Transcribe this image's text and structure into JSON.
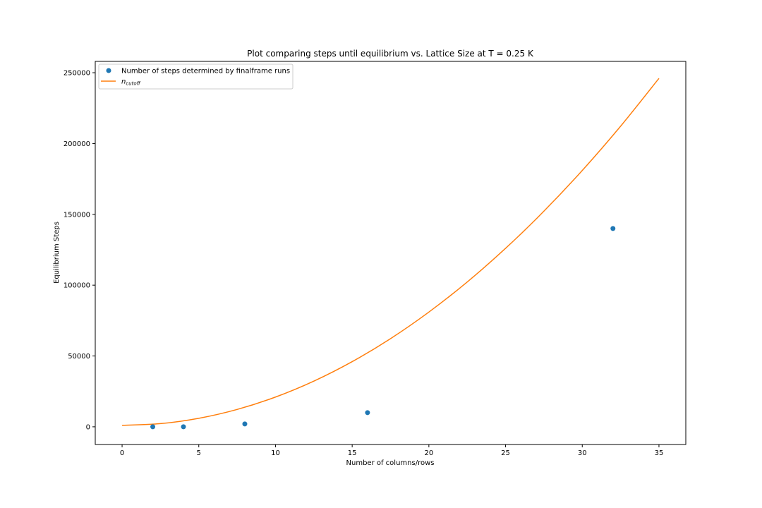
{
  "chart_data": {
    "type": "scatter",
    "title": "Plot comparing steps until equilibrium vs. Lattice Size at T = 0.25 K",
    "xlabel": "Number of columns/rows",
    "ylabel": "Equilibrium Steps",
    "xlim": [
      -1.75,
      36.75
    ],
    "ylim": [
      -12500,
      258000
    ],
    "xticks": [
      0,
      5,
      10,
      15,
      20,
      25,
      30,
      35
    ],
    "yticks": [
      0,
      50000,
      100000,
      150000,
      200000,
      250000
    ],
    "xtick_labels": [
      "0",
      "5",
      "10",
      "15",
      "20",
      "25",
      "30",
      "35"
    ],
    "ytick_labels": [
      "0",
      "50000",
      "100000",
      "150000",
      "200000",
      "250000"
    ],
    "grid": false,
    "legend": {
      "position": "top-left",
      "entries": [
        {
          "label": "Number of steps determined by finalframe runs",
          "color": "#1f77b4",
          "marker": "circle"
        },
        {
          "label_main": "n",
          "label_sub": "cutoff",
          "color": "#ff7f0e",
          "marker": "line"
        }
      ]
    },
    "series": [
      {
        "kind": "scatter",
        "color": "#1f77b4",
        "x": [
          2,
          4,
          8,
          16,
          32
        ],
        "y": [
          0,
          0,
          2000,
          10000,
          140000
        ]
      },
      {
        "kind": "line",
        "color": "#ff7f0e",
        "x": [
          0,
          2.5,
          5,
          7.5,
          10,
          12.5,
          15,
          17.5,
          20,
          22.5,
          25,
          27.5,
          30,
          32.5,
          35
        ],
        "y": [
          1000,
          2250,
          6000,
          12250,
          21000,
          32250,
          46000,
          62250,
          81000,
          102250,
          126000,
          152250,
          181000,
          212250,
          246000
        ]
      }
    ]
  }
}
